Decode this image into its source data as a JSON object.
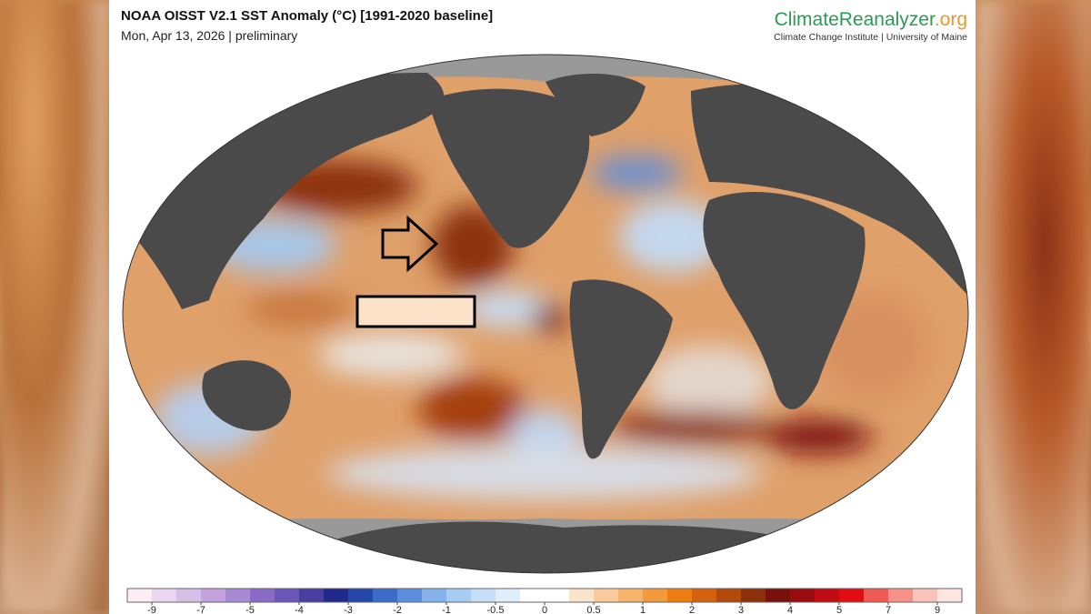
{
  "header": {
    "title": "NOAA OISST V2.1 SST Anomaly (°C) [1991-2020 baseline]",
    "subtitle": "Mon, Apr 13, 2026 | preliminary",
    "brand": "ClimateReanalyzer",
    "brand_suffix": ".org",
    "brand_subtitle": "Climate Change Institute | University of Maine"
  },
  "colorbar": {
    "ticks": [
      -9,
      -7,
      -5,
      -4,
      -3,
      -2,
      -1,
      -0.5,
      0,
      0.5,
      1,
      2,
      3,
      4,
      5,
      7,
      9
    ],
    "colors": [
      "#fbeef4",
      "#ead7ef",
      "#d8bfe8",
      "#c3a2de",
      "#a889d4",
      "#8a6cc6",
      "#6a56b6",
      "#4a3fa0",
      "#1f2a8c",
      "#2548a8",
      "#3a6cc8",
      "#5b8fdd",
      "#86b2ea",
      "#a8cdf2",
      "#c6def6",
      "#e0edfa",
      "#ffffff",
      "#ffffff",
      "#fbe4cc",
      "#f8cc9c",
      "#f5b36c",
      "#f29a3c",
      "#ee7d14",
      "#d4620c",
      "#b24a0c",
      "#8c300c",
      "#7a100c",
      "#980c10",
      "#c00c12",
      "#e40c14",
      "#ee5a54",
      "#f4928a",
      "#f8c4ba",
      "#fce6e2"
    ]
  }
}
